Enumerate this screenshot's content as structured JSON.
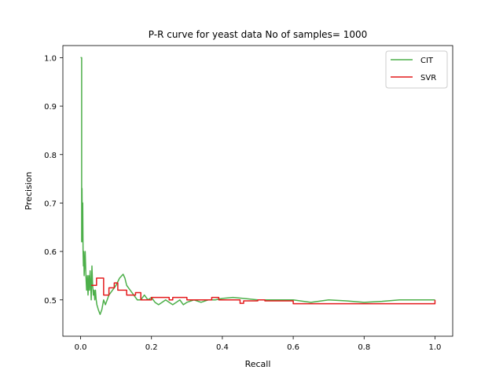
{
  "chart_data": {
    "type": "line",
    "title": "P-R curve for yeast data No of samples= 1000",
    "xlabel": "Recall",
    "ylabel": "Precision",
    "xlim": [
      -0.05,
      1.05
    ],
    "ylim": [
      0.425,
      1.025
    ],
    "xticks": [
      0.0,
      0.2,
      0.4,
      0.6,
      0.8,
      1.0
    ],
    "xtick_labels": [
      "0.0",
      "0.2",
      "0.4",
      "0.6",
      "0.8",
      "1.0"
    ],
    "yticks": [
      0.5,
      0.6,
      0.7,
      0.8,
      0.9,
      1.0
    ],
    "ytick_labels": [
      "0.5",
      "0.6",
      "0.7",
      "0.8",
      "0.9",
      "1.0"
    ],
    "grid": false,
    "legend_position": "upper right",
    "series": [
      {
        "name": "CIT",
        "color": "#4daf4a",
        "x": [
          0.0,
          0.003,
          0.003,
          0.004,
          0.005,
          0.006,
          0.007,
          0.008,
          0.009,
          0.01,
          0.012,
          0.013,
          0.015,
          0.017,
          0.019,
          0.021,
          0.023,
          0.025,
          0.027,
          0.03,
          0.032,
          0.034,
          0.036,
          0.038,
          0.04,
          0.042,
          0.044,
          0.046,
          0.05,
          0.055,
          0.06,
          0.065,
          0.07,
          0.08,
          0.09,
          0.1,
          0.11,
          0.12,
          0.125,
          0.13,
          0.14,
          0.15,
          0.16,
          0.17,
          0.18,
          0.19,
          0.2,
          0.21,
          0.22,
          0.23,
          0.24,
          0.25,
          0.26,
          0.27,
          0.28,
          0.29,
          0.3,
          0.32,
          0.34,
          0.36,
          0.38,
          0.4,
          0.43,
          0.46,
          0.5,
          0.55,
          0.6,
          0.65,
          0.7,
          0.75,
          0.8,
          0.85,
          0.9,
          0.95,
          1.0
        ],
        "y": [
          1.0,
          1.0,
          0.62,
          0.73,
          0.62,
          0.7,
          0.6,
          0.57,
          0.6,
          0.55,
          0.58,
          0.6,
          0.55,
          0.52,
          0.55,
          0.51,
          0.55,
          0.52,
          0.56,
          0.5,
          0.57,
          0.53,
          0.51,
          0.52,
          0.5,
          0.52,
          0.5,
          0.49,
          0.48,
          0.47,
          0.48,
          0.5,
          0.49,
          0.51,
          0.52,
          0.53,
          0.545,
          0.553,
          0.545,
          0.53,
          0.52,
          0.51,
          0.5,
          0.5,
          0.51,
          0.5,
          0.505,
          0.495,
          0.49,
          0.495,
          0.5,
          0.495,
          0.49,
          0.495,
          0.5,
          0.49,
          0.495,
          0.5,
          0.495,
          0.5,
          0.5,
          0.503,
          0.505,
          0.503,
          0.5,
          0.5,
          0.5,
          0.495,
          0.5,
          0.498,
          0.495,
          0.497,
          0.5,
          0.5,
          0.5
        ]
      },
      {
        "name": "SVR",
        "color": "#e41a1c",
        "x": [
          0.03,
          0.045,
          0.045,
          0.065,
          0.065,
          0.08,
          0.08,
          0.095,
          0.095,
          0.105,
          0.105,
          0.13,
          0.13,
          0.155,
          0.155,
          0.17,
          0.17,
          0.2,
          0.2,
          0.25,
          0.25,
          0.26,
          0.26,
          0.3,
          0.3,
          0.37,
          0.37,
          0.39,
          0.39,
          0.45,
          0.45,
          0.46,
          0.46,
          0.5,
          0.5,
          0.52,
          0.52,
          0.6,
          0.6,
          1.0,
          1.0
        ],
        "y": [
          0.53,
          0.53,
          0.545,
          0.545,
          0.51,
          0.51,
          0.525,
          0.525,
          0.535,
          0.535,
          0.52,
          0.52,
          0.51,
          0.51,
          0.515,
          0.515,
          0.5,
          0.5,
          0.505,
          0.505,
          0.5,
          0.5,
          0.505,
          0.505,
          0.5,
          0.5,
          0.505,
          0.505,
          0.5,
          0.5,
          0.493,
          0.493,
          0.498,
          0.498,
          0.5,
          0.5,
          0.498,
          0.498,
          0.492,
          0.492,
          0.5
        ]
      }
    ]
  }
}
